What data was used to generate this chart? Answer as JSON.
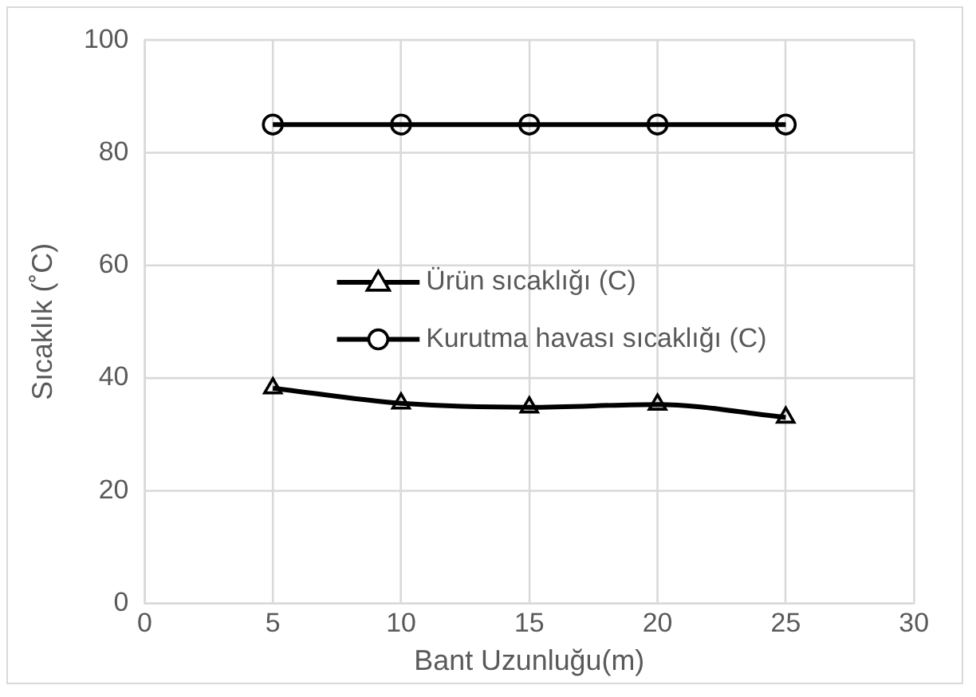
{
  "chart_data": {
    "type": "line",
    "xlabel": "Bant Uzunluğu(m)",
    "ylabel": "Sıcaklık (˚C)",
    "x": [
      5,
      10,
      15,
      20,
      25
    ],
    "series": [
      {
        "name": "Ürün sıcaklığı (C)",
        "color": "#000000",
        "marker": "triangle",
        "values": [
          38.2,
          35.5,
          34.8,
          35.3,
          33.0
        ]
      },
      {
        "name": "Kurutma havası sıcaklığı (C)",
        "color": "#000000",
        "marker": "circle",
        "values": [
          85,
          85,
          85,
          85,
          85
        ]
      }
    ],
    "xlim": [
      0,
      30
    ],
    "xticks": [
      0,
      5,
      10,
      15,
      20,
      25,
      30
    ],
    "ylim": [
      0,
      100
    ],
    "yticks": [
      0,
      20,
      40,
      60,
      80,
      100
    ],
    "grid": true,
    "legend": "center",
    "line_style": "solid"
  }
}
